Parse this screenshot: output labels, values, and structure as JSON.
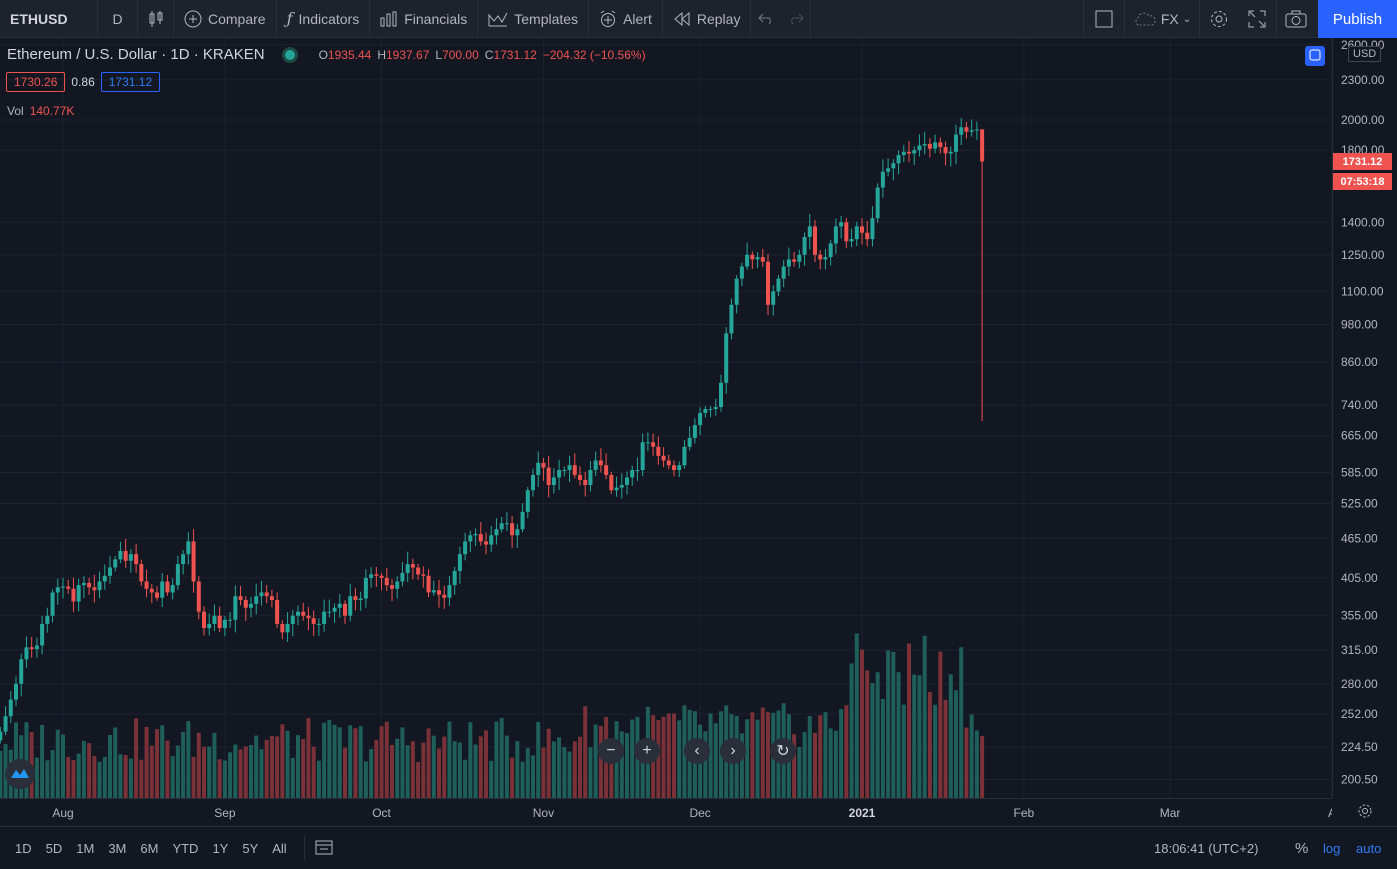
{
  "toolbar": {
    "symbol": "ETHUSD",
    "interval": "D",
    "compare": "Compare",
    "indicators": "Indicators",
    "financials": "Financials",
    "templates": "Templates",
    "alert": "Alert",
    "replay": "Replay",
    "currency": "FX",
    "publish": "Publish"
  },
  "legend": {
    "title": "Ethereum / U.S. Dollar · 1D · KRAKEN",
    "open_key": "O",
    "open": "1935.44",
    "high_key": "H",
    "high": "1937.67",
    "low_key": "L",
    "low": "700.00",
    "close_key": "C",
    "close": "1731.12",
    "change": "−204.32 (−10.56%)",
    "bid": "1730.26",
    "spread": "0.86",
    "ask": "1731.12",
    "vol_label": "Vol",
    "vol_value": "140.77K"
  },
  "price_scale": {
    "unit": "USD",
    "last_price": "1731.12",
    "countdown": "07:53:18"
  },
  "bottom": {
    "ranges": [
      "1D",
      "5D",
      "1M",
      "3M",
      "6M",
      "YTD",
      "1Y",
      "5Y",
      "All"
    ],
    "clock": "18:06:41 (UTC+2)",
    "percent": "%",
    "log": "log",
    "auto": "auto"
  },
  "colors": {
    "up": "#26a69a",
    "down": "#ef5350",
    "accent": "#2962ff",
    "background": "#131722"
  },
  "chart_data": {
    "type": "candlestick",
    "symbol": "ETHUSD",
    "scale": "log",
    "y_ticks": [
      2600,
      2300,
      2000,
      1800,
      1400,
      1250,
      1100,
      980,
      860,
      740,
      665,
      585,
      525,
      465,
      405,
      355,
      315,
      280,
      252,
      224.5,
      200.5
    ],
    "y_tick_labels": [
      "2600.00",
      "2300.00",
      "2000.00",
      "1800.00",
      "1400.00",
      "1250.00",
      "1100.00",
      "980.00",
      "860.00",
      "740.00",
      "665.00",
      "585.00",
      "525.00",
      "465.00",
      "405.00",
      "355.00",
      "315.00",
      "280.00",
      "252.00",
      "224.50",
      "200.50"
    ],
    "x_ticks": [
      {
        "label": "Aug",
        "date": "2020-08-01"
      },
      {
        "label": "Sep",
        "date": "2020-09-01"
      },
      {
        "label": "Oct",
        "date": "2020-10-01"
      },
      {
        "label": "Nov",
        "date": "2020-11-01"
      },
      {
        "label": "Dec",
        "date": "2020-12-01"
      },
      {
        "label": "2021",
        "date": "2021-01-01"
      },
      {
        "label": "Feb",
        "date": "2021-02-01"
      },
      {
        "label": "Mar",
        "date": "2021-03-01"
      },
      {
        "label": "A",
        "date": "2021-04-01"
      }
    ],
    "start_date": "2020-07-20",
    "closes": [
      237,
      250,
      265,
      280,
      305,
      318,
      316,
      320,
      345,
      355,
      385,
      392,
      393,
      390,
      373,
      395,
      398,
      392,
      388,
      400,
      408,
      420,
      432,
      445,
      430,
      440,
      425,
      400,
      390,
      385,
      378,
      400,
      385,
      395,
      425,
      440,
      460,
      400,
      360,
      340,
      345,
      355,
      340,
      350,
      350,
      380,
      375,
      365,
      370,
      380,
      385,
      380,
      375,
      345,
      335,
      345,
      355,
      360,
      355,
      352,
      345,
      345,
      360,
      360,
      365,
      370,
      355,
      380,
      375,
      377,
      405,
      410,
      408,
      405,
      395,
      390,
      400,
      412,
      425,
      420,
      410,
      408,
      385,
      388,
      382,
      378,
      395,
      415,
      440,
      460,
      470,
      472,
      460,
      455,
      470,
      480,
      490,
      490,
      470,
      480,
      510,
      550,
      580,
      605,
      595,
      560,
      575,
      590,
      590,
      600,
      580,
      570,
      560,
      590,
      610,
      600,
      580,
      550,
      555,
      560,
      575,
      590,
      590,
      650,
      650,
      640,
      620,
      610,
      600,
      590,
      600,
      640,
      660,
      690,
      720,
      730,
      730,
      735,
      800,
      950,
      1050,
      1150,
      1200,
      1250,
      1230,
      1240,
      1220,
      1050,
      1100,
      1150,
      1200,
      1230,
      1220,
      1250,
      1330,
      1380,
      1250,
      1230,
      1240,
      1300,
      1380,
      1400,
      1310,
      1320,
      1380,
      1350,
      1320,
      1420,
      1580,
      1670,
      1690,
      1720,
      1770,
      1790,
      1780,
      1800,
      1830,
      1840,
      1810,
      1850,
      1820,
      1780,
      1790,
      1900,
      1950,
      1920,
      1930,
      1935,
      1731
    ],
    "volume_unit_note": "",
    "last": {
      "open": 1935.44,
      "high": 1937.67,
      "low": 700.0,
      "close": 1731.12,
      "volume": "140.77K"
    }
  }
}
